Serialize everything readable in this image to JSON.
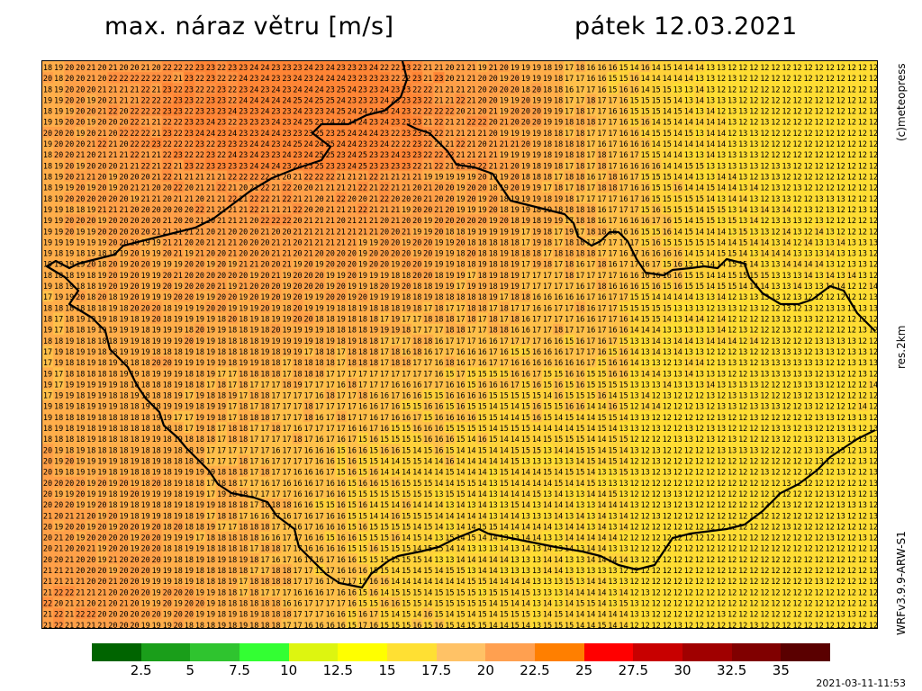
{
  "header": {
    "title": "max. náraz větru [m/s]",
    "date": "pátek 12.03.2021"
  },
  "side_labels": {
    "copyright": "(c)meteopress",
    "resolution": "res.2km",
    "model": "WRFv3.9.9-ARW-S1"
  },
  "timestamp": "2021-03-11-11:53",
  "legend": {
    "colors": [
      "#006400",
      "#1a9e1a",
      "#2fc42f",
      "#33ff33",
      "#ddf510",
      "#ffff00",
      "#ffe033",
      "#ffc266",
      "#ffa050",
      "#ff7f00",
      "#ff0000",
      "#c80000",
      "#a00000",
      "#800000",
      "#5a0000"
    ],
    "ticks": [
      "2.5",
      "5",
      "7.5",
      "10",
      "12.5",
      "15",
      "17.5",
      "20",
      "22.5",
      "25",
      "27.5",
      "30",
      "32.5",
      "35"
    ]
  },
  "map": {
    "columns": 77,
    "rows": 52,
    "border_color": "#000000",
    "note_values": "wind gust values in m/s, mostly 13-24"
  }
}
